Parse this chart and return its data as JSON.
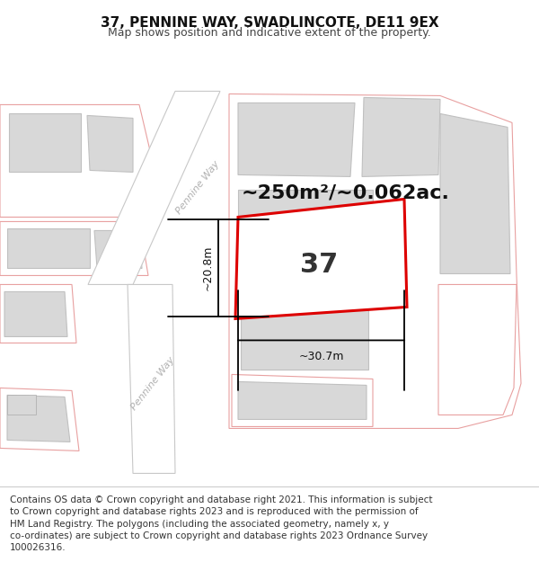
{
  "title": "37, PENNINE WAY, SWADLINCOTE, DE11 9EX",
  "subtitle": "Map shows position and indicative extent of the property.",
  "footer": "Contains OS data © Crown copyright and database right 2021. This information is subject\nto Crown copyright and database rights 2023 and is reproduced with the permission of\nHM Land Registry. The polygons (including the associated geometry, namely x, y\nco-ordinates) are subject to Crown copyright and database rights 2023 Ordnance Survey\n100026316.",
  "area_label": "~250m²/~0.062ac.",
  "number_label": "37",
  "dim_h": "~20.8m",
  "dim_w": "~30.7m",
  "bg": "#ffffff",
  "road_edge_color": "#c8c8c8",
  "bld_fill": "#d8d8d8",
  "bld_stroke": "#c0c0c0",
  "pink_stroke": "#e8a0a0",
  "highlight_red": "#dd0000",
  "road_text_color": "#b0b0b0",
  "title_color": "#111111",
  "footer_color": "#333333",
  "sep_color": "#cccccc",
  "title_fontsize": 11,
  "subtitle_fontsize": 9,
  "footer_fontsize": 7.5,
  "area_fontsize": 16,
  "number_fontsize": 22,
  "dim_fontsize": 9
}
